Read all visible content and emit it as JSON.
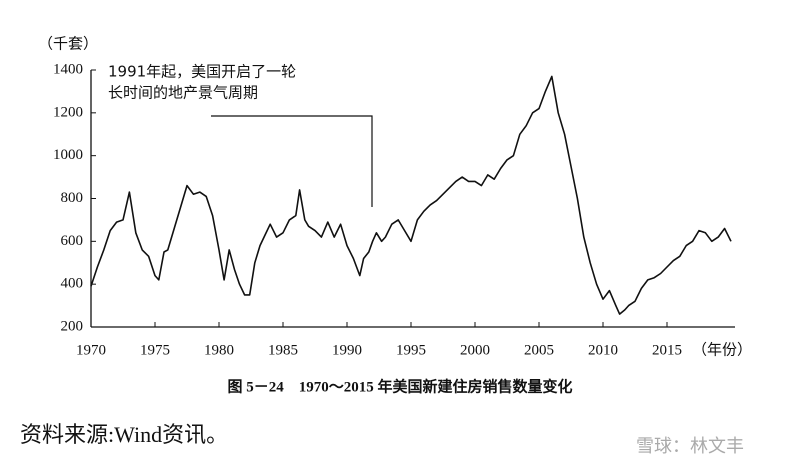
{
  "chart_data": {
    "type": "line",
    "y_label": "（千套）",
    "x_label": "（年份）",
    "annotation": [
      "1991年起，美国开启了一轮",
      "长时间的地产景气周期"
    ],
    "caption": "图 5－24　1970～2015 年美国新建住房销售数量变化",
    "source": "资料来源:Wind资讯。",
    "watermark": "雪球：林文丰",
    "color": "#111111",
    "xlim": [
      1970,
      2020
    ],
    "ylim": [
      200,
      1400
    ],
    "xticks": [
      1970,
      1975,
      1980,
      1985,
      1990,
      1995,
      2000,
      2005,
      2010,
      2015
    ],
    "yticks": [
      200,
      400,
      600,
      800,
      1000,
      1200,
      1400
    ],
    "x": [
      1970,
      1970.5,
      1971,
      1971.5,
      1972,
      1972.5,
      1973,
      1973.5,
      1974,
      1974.5,
      1975,
      1975.3,
      1975.7,
      1976,
      1976.5,
      1977,
      1977.5,
      1978,
      1978.5,
      1979,
      1979.5,
      1980,
      1980.4,
      1980.8,
      1981.2,
      1981.6,
      1982,
      1982.4,
      1982.8,
      1983.2,
      1983.6,
      1984,
      1984.5,
      1985,
      1985.5,
      1986,
      1986.3,
      1986.7,
      1987,
      1987.5,
      1988,
      1988.5,
      1989,
      1989.5,
      1990,
      1990.5,
      1991,
      1991.3,
      1991.7,
      1992,
      1992.3,
      1992.7,
      1993,
      1993.5,
      1994,
      1994.5,
      1995,
      1995.5,
      1996,
      1996.5,
      1997,
      1997.5,
      1998,
      1998.5,
      1999,
      1999.5,
      2000,
      2000.5,
      2001,
      2001.5,
      2002,
      2002.5,
      2003,
      2003.5,
      2004,
      2004.5,
      2005,
      2005.5,
      2006,
      2006.5,
      2007,
      2007.5,
      2008,
      2008.5,
      2009,
      2009.5,
      2010,
      2010.5,
      2011,
      2011.3,
      2011.7,
      2012,
      2012.5,
      2013,
      2013.5,
      2014,
      2014.5,
      2015,
      2015.5,
      2016,
      2016.5,
      2017,
      2017.5,
      2018,
      2018.5,
      2019,
      2019.5,
      2020
    ],
    "values": [
      390,
      480,
      560,
      650,
      690,
      700,
      830,
      640,
      560,
      530,
      440,
      420,
      550,
      560,
      660,
      760,
      860,
      820,
      830,
      810,
      720,
      560,
      420,
      560,
      470,
      400,
      350,
      350,
      500,
      580,
      630,
      680,
      620,
      640,
      700,
      720,
      840,
      700,
      670,
      650,
      620,
      690,
      620,
      680,
      580,
      520,
      440,
      520,
      550,
      600,
      640,
      600,
      620,
      680,
      700,
      650,
      600,
      700,
      740,
      770,
      790,
      820,
      850,
      880,
      900,
      880,
      880,
      860,
      910,
      890,
      940,
      980,
      1000,
      1100,
      1140,
      1200,
      1220,
      1300,
      1370,
      1200,
      1100,
      950,
      800,
      620,
      500,
      400,
      330,
      370,
      300,
      260,
      280,
      300,
      320,
      380,
      420,
      430,
      450,
      480,
      510,
      530,
      580,
      600,
      650,
      640,
      600,
      620,
      660,
      600
    ]
  }
}
